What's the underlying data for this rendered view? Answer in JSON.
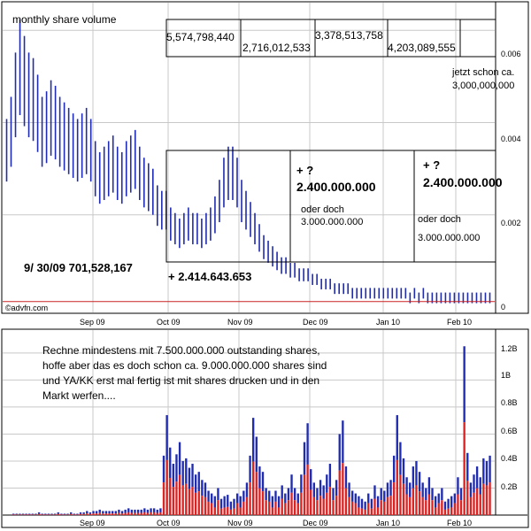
{
  "watermark": "©advfn.com",
  "price_panel": {
    "title": "monthly share volume",
    "y_ticks": [
      "0.006",
      "0.004",
      "0.002",
      "0"
    ],
    "x_ticks": [
      "Sep 09",
      "Oct 09",
      "Nov 09",
      "Dec 09",
      "Jan 10",
      "Feb 10"
    ],
    "boxes": {
      "m1": "5,574,798,440",
      "m2": "2,716,012,533",
      "m3": "3,378,513,758",
      "m4": "4,203,089,555",
      "note_line1": "jetzt schon ca.",
      "note_line2": "3,000,000,000",
      "plus_a": "+ ?",
      "plus_a_val": "2.400.000.000",
      "oder_a": "oder doch",
      "oder_a_val": "3.000.000.000",
      "plus_b": "+ ?",
      "plus_b_val": "2.400.000.000",
      "oder_b": "oder doch",
      "oder_b_val": "3.000.000.000",
      "sep_label": "9/ 30/09  701,528,167",
      "oct_label": "+ 2.414.643.653"
    },
    "colors": {
      "bars": "#1f2bb0",
      "reference_line": "#cc2222",
      "grid": "#c8c8c8"
    }
  },
  "volume_panel": {
    "y_ticks": [
      "1.2B",
      "1B",
      "0.8B",
      "0.6B",
      "0.4B",
      "0.2B"
    ],
    "x_ticks": [
      "Sep 09",
      "Oct 09",
      "Nov 09",
      "Dec 09",
      "Jan 10",
      "Feb 10"
    ],
    "comment_lines": [
      "Rechne mindestens mit 7.500.000.000 outstanding shares,",
      "hoffe aber das es doch schon ca. 9.000.000.000 shares sind",
      "und YA/KK erst mal fertig ist mit shares drucken und in den",
      "Markt werfen...."
    ],
    "colors": {
      "up": "#1f2bb0",
      "down": "#dd2222",
      "flat": "#22aa22"
    }
  },
  "chart_data": [
    {
      "type": "bar",
      "x_tick_labels": [
        "Sep 09",
        "Oct 09",
        "Nov 09",
        "Dec 09",
        "Jan 10",
        "Feb 10"
      ],
      "ylim": [
        0,
        0.0066
      ],
      "series": [
        {
          "values": [
            0.0034,
            0.0038,
            0.0046,
            0.0052,
            0.0049,
            0.0046,
            0.0045,
            0.0042,
            0.0038,
            0.0039,
            0.0041,
            0.004,
            0.0038,
            0.0037,
            0.0036,
            0.0035,
            0.0034,
            0.0035,
            0.0036,
            0.0034,
            0.003,
            0.0028,
            0.0029,
            0.003,
            0.0031,
            0.0029,
            0.0028,
            0.003,
            0.0031,
            0.0032,
            0.0029,
            0.0027,
            0.0026,
            0.0025,
            0.0022,
            0.0021,
            0.0021,
            0.0018,
            0.0017,
            0.0016,
            0.0017,
            0.0018,
            0.0017,
            0.0017,
            0.0016,
            0.0017,
            0.0018,
            0.002,
            0.0023,
            0.0027,
            0.0029,
            0.0029,
            0.0027,
            0.0023,
            0.0021,
            0.0019,
            0.0017,
            0.0015,
            0.0013,
            0.0012,
            0.0011,
            0.001,
            0.0009,
            0.0009,
            0.0008,
            0.0008,
            0.0007,
            0.0007,
            0.0007,
            0.0006,
            0.0006,
            0.0005,
            0.0005,
            0.0005,
            0.0004,
            0.0004,
            0.0004,
            0.0004,
            0.0003,
            0.0003,
            0.0003,
            0.0003,
            0.0003,
            0.0003,
            0.0003,
            0.0003,
            0.0003,
            0.0003,
            0.0003,
            0.0003,
            0.0003,
            0.0002,
            0.0003,
            0.0002,
            0.0003,
            0.0002,
            0.0002,
            0.0002,
            0.0002,
            0.0002,
            0.0002,
            0.0002,
            0.0002,
            0.0002,
            0.0002,
            0.0002,
            0.0002,
            0.0002,
            0.0002,
            0.0002
          ]
        }
      ],
      "reference_line": 0.00012
    },
    {
      "type": "bar",
      "x_tick_labels": [
        "Sep 09",
        "Oct 09",
        "Nov 09",
        "Dec 09",
        "Jan 10",
        "Feb 10"
      ],
      "ylim": [
        0,
        1.35
      ],
      "unit": "B",
      "series": [
        {
          "values": [
            0.01,
            0.01,
            0.01,
            0.01,
            0.01,
            0.01,
            0.01,
            0.01,
            0.02,
            0.01,
            0.01,
            0.01,
            0.01,
            0.01,
            0.02,
            0.01,
            0.01,
            0.01,
            0.02,
            0.01,
            0.01,
            0.02,
            0.02,
            0.03,
            0.02,
            0.03,
            0.03,
            0.04,
            0.03,
            0.03,
            0.03,
            0.03,
            0.03,
            0.04,
            0.03,
            0.04,
            0.05,
            0.04,
            0.04,
            0.04,
            0.04,
            0.05,
            0.04,
            0.05,
            0.05,
            0.04,
            0.05,
            0.44,
            0.74,
            0.5,
            0.38,
            0.45,
            0.54,
            0.4,
            0.42,
            0.35,
            0.38,
            0.3,
            0.32,
            0.26,
            0.24,
            0.18,
            0.16,
            0.14,
            0.2,
            0.12,
            0.14,
            0.15,
            0.1,
            0.12,
            0.16,
            0.14,
            0.18,
            0.24,
            0.44,
            0.72,
            0.58,
            0.36,
            0.32,
            0.2,
            0.18,
            0.14,
            0.18,
            0.14,
            0.22,
            0.16,
            0.2,
            0.3,
            0.2,
            0.16,
            0.3,
            0.54,
            0.68,
            0.34,
            0.24,
            0.2,
            0.26,
            0.22,
            0.3,
            0.38,
            0.2,
            0.26,
            0.6,
            0.7,
            0.36,
            0.24,
            0.18,
            0.16,
            0.14,
            0.12,
            0.1,
            0.16,
            0.12,
            0.22,
            0.14,
            0.2,
            0.18,
            0.24,
            0.26,
            0.44,
            0.74,
            0.54,
            0.42,
            0.28,
            0.24,
            0.36,
            0.4,
            0.32,
            0.24,
            0.2,
            0.28,
            0.2,
            0.14,
            0.16,
            0.2,
            0.1,
            0.12,
            0.14,
            0.16,
            0.28,
            0.2,
            1.25,
            0.46,
            0.24,
            0.3,
            0.36,
            0.28,
            0.42,
            0.4,
            0.44
          ]
        }
      ]
    }
  ]
}
